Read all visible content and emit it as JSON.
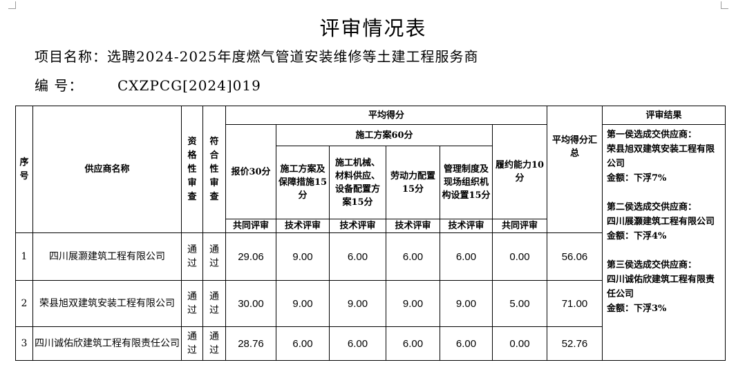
{
  "title": "评审情况表",
  "project": {
    "label": "项目名称：",
    "value": "选聘2024-2025年度燃气管道安装维修等土建工程服务商"
  },
  "code": {
    "label": "编    号：",
    "value": "CXZPCG[2024]019"
  },
  "headers": {
    "seq": "序号",
    "supplier": "供应商名称",
    "qualification": "资格性审查",
    "compliance": "符合性审查",
    "avg_score": "平均得分",
    "price": "报价30分",
    "construction_plan": "施工方案60分",
    "performance": "履约能力10分",
    "sub": [
      "施工方案及保障措施15分",
      "施工机械、材料供应、设备配置方案15分",
      "劳动力配置15分",
      "管理制度及现场组织机构设置15分"
    ],
    "total": "平均得分汇总",
    "result": "评审结果",
    "review_types": [
      "共同评审",
      "技术评审",
      "技术评审",
      "技术评审",
      "技术评审",
      "共同评审"
    ]
  },
  "rows": [
    {
      "seq": "1",
      "name": "四川展灏建筑工程有限公司",
      "qual": "通过",
      "comp": "通过",
      "scores": [
        "29.06",
        "9.00",
        "6.00",
        "6.00",
        "6.00",
        "0.00"
      ],
      "total": "56.06"
    },
    {
      "seq": "2",
      "name": "荣县旭双建筑安装工程有限公司",
      "qual": "通过",
      "comp": "通过",
      "scores": [
        "30.00",
        "9.00",
        "9.00",
        "9.00",
        "9.00",
        "5.00"
      ],
      "total": "71.00"
    },
    {
      "seq": "3",
      "name": "四川诚佑欣建筑工程有限责任公司",
      "qual": "通过",
      "comp": "通过",
      "scores": [
        "28.76",
        "6.00",
        "6.00",
        "6.00",
        "6.00",
        "0.00"
      ],
      "total": "52.76"
    }
  ],
  "results": [
    {
      "rank": "第一侯选成交供应商：",
      "company": "荣县旭双建筑安装工程有限公司",
      "amount": "金额：下浮7%"
    },
    {
      "rank": "第二侯选成交供应商：",
      "company": "四川展灏建筑工程有限公司",
      "amount": "金额：下浮4%"
    },
    {
      "rank": "第三侯选成交供应商：",
      "company": "四川诚佑欣建筑工程有限责任公司",
      "amount": "金额：下浮3%"
    }
  ]
}
